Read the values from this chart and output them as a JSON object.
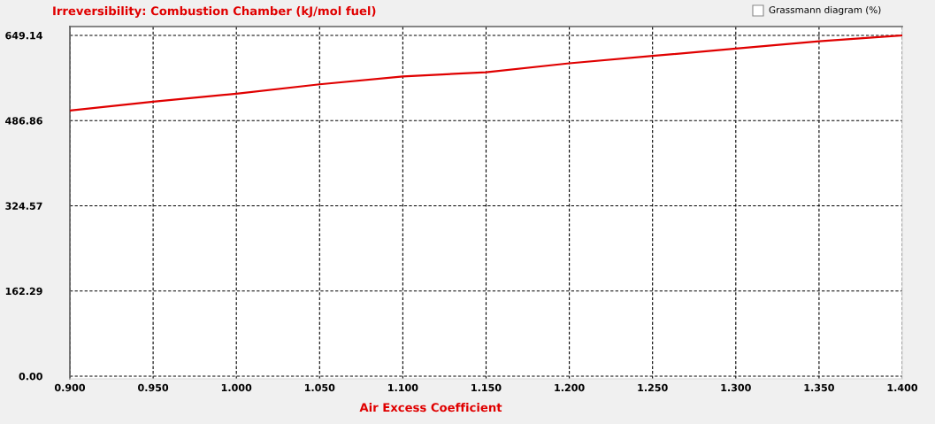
{
  "chart_data": {
    "type": "line",
    "title": "Irreversibility: Combustion Chamber (kJ/mol fuel)",
    "xlabel": "Air Excess Coefficient",
    "annotations": [
      "Grassmann diagram (%)"
    ],
    "x": [
      0.9,
      0.95,
      1.0,
      1.05,
      1.1,
      1.15,
      1.2,
      1.25,
      1.3,
      1.35,
      1.4
    ],
    "series": [
      {
        "color": "#e00000",
        "values": [
          506,
          523,
          538,
          556,
          571,
          579,
          596,
          610,
          624,
          638,
          649.14
        ]
      }
    ],
    "xlim": [
      0.9,
      1.4
    ],
    "xticks": [
      {
        "value": 0.9,
        "label": "0.900"
      },
      {
        "value": 0.95,
        "label": "0.950"
      },
      {
        "value": 1.0,
        "label": "1.000"
      },
      {
        "value": 1.05,
        "label": "1.050"
      },
      {
        "value": 1.1,
        "label": "1.100"
      },
      {
        "value": 1.15,
        "label": "1.150"
      },
      {
        "value": 1.2,
        "label": "1.200"
      },
      {
        "value": 1.25,
        "label": "1.250"
      },
      {
        "value": 1.3,
        "label": "1.300"
      },
      {
        "value": 1.35,
        "label": "1.350"
      },
      {
        "value": 1.4,
        "label": "1.400"
      }
    ],
    "ylim": [
      -5,
      666
    ],
    "yticks": [
      {
        "value": 0,
        "label": "0.00"
      },
      162.29,
      324.57,
      486.86,
      649.14
    ],
    "grid": true
  }
}
